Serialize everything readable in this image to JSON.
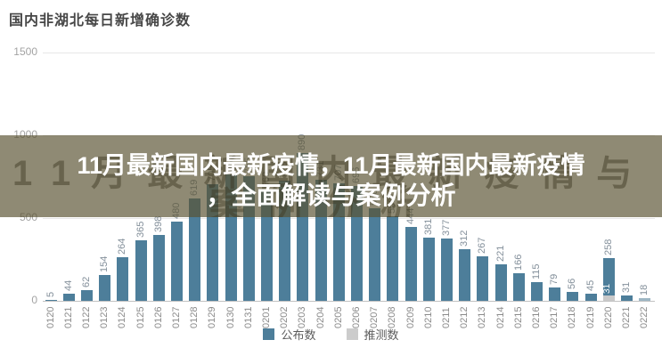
{
  "chart": {
    "title": "国内非湖北每日新增确诊数",
    "colors": {
      "bar_announced": "#4d7e9a",
      "bar_inferred": "#c9c9c9",
      "bar_light": "#9db6c4",
      "grid": "#e7e7e7",
      "axis_text": "#a3a3a3",
      "value_label": "#84909b"
    }
  },
  "chart_data": {
    "type": "bar",
    "title": "国内非湖北每日新增确诊数",
    "categories": [
      "0120",
      "0121",
      "0122",
      "0123",
      "0124",
      "0125",
      "0126",
      "0127",
      "0128",
      "0129",
      "0130",
      "0131",
      "0201",
      "0202",
      "0203",
      "0204",
      "0205",
      "0206",
      "0207",
      "0208",
      "0209",
      "0210",
      "0211",
      "0212",
      "0213",
      "0214",
      "0215",
      "0216",
      "0217",
      "0218",
      "0219",
      "0220",
      "0221",
      "0222"
    ],
    "series": [
      {
        "name": "公布数",
        "values": [
          5,
          44,
          62,
          154,
          264,
          365,
          398,
          480,
          619,
          705,
          762,
          755,
          669,
          726,
          890,
          731,
          707,
          696,
          558,
          509,
          444,
          381,
          377,
          312,
          267,
          221,
          166,
          115,
          79,
          56,
          45,
          258,
          31,
          18
        ]
      }
    ],
    "inferred_segment": {
      "category": "0220",
      "value": 31,
      "label": "31",
      "series_name": "推测数"
    },
    "light_bars": [
      "0222"
    ],
    "xlabel": "",
    "ylabel": "",
    "ylim": [
      0,
      1500
    ],
    "yticks": [
      0,
      500,
      1000,
      1500
    ],
    "grid": true,
    "legend_position": "bottom",
    "legend": [
      {
        "label": "公布数",
        "color": "#4d7e9a"
      },
      {
        "label": "推测数",
        "color": "#cccccc"
      }
    ]
  },
  "overlay": {
    "headline_line1": "11月最新国内最新疫情，11月最新国内最新疫情",
    "headline_line2": "，全面解读与案例分析",
    "watermark_line1": "11月最新国内最新疫情与",
    "watermark_line2": "案例分析",
    "background_color": "rgba(90,82,50,0.68)",
    "text_color": "#ffffff"
  }
}
